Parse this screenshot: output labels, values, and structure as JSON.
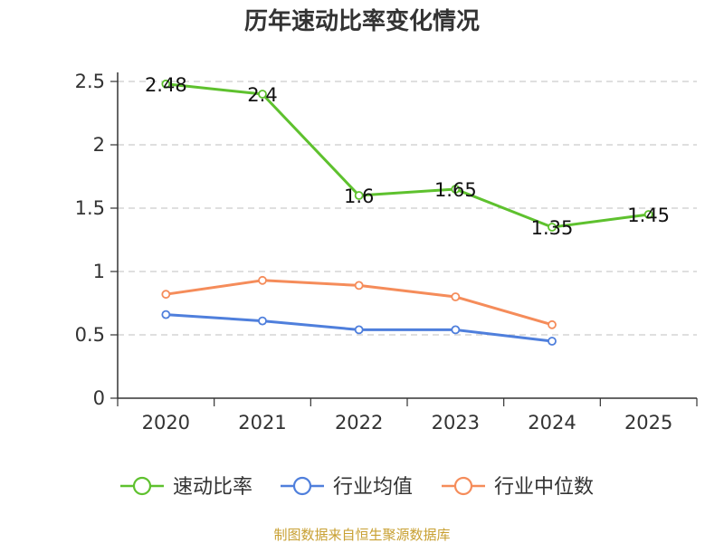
{
  "chart_data": {
    "type": "line",
    "title": "历年速动比率变化情况",
    "categories": [
      "2020",
      "2021",
      "2022",
      "2023",
      "2024",
      "2025"
    ],
    "ylim": [
      0,
      2.5
    ],
    "yticks": [
      "0",
      "0.5",
      "1",
      "1.5",
      "2",
      "2.5"
    ],
    "grid": true,
    "legend_position": "bottom",
    "series": [
      {
        "name": "速动比率",
        "color": "#5ec12e",
        "values": [
          2.48,
          2.4,
          1.6,
          1.65,
          1.35,
          1.45
        ],
        "labels": [
          "2.48",
          "2.4",
          "1.6",
          "1.65",
          "1.35",
          "1.45"
        ],
        "show_labels": true
      },
      {
        "name": "行业均值",
        "color": "#4f7fdc",
        "values": [
          0.66,
          0.61,
          0.54,
          0.54,
          0.45,
          null
        ],
        "show_labels": false
      },
      {
        "name": "行业中位数",
        "color": "#f58c5a",
        "values": [
          0.82,
          0.93,
          0.89,
          0.8,
          0.58,
          null
        ],
        "show_labels": false
      }
    ]
  },
  "source_text": "制图数据来自恒生聚源数据库"
}
